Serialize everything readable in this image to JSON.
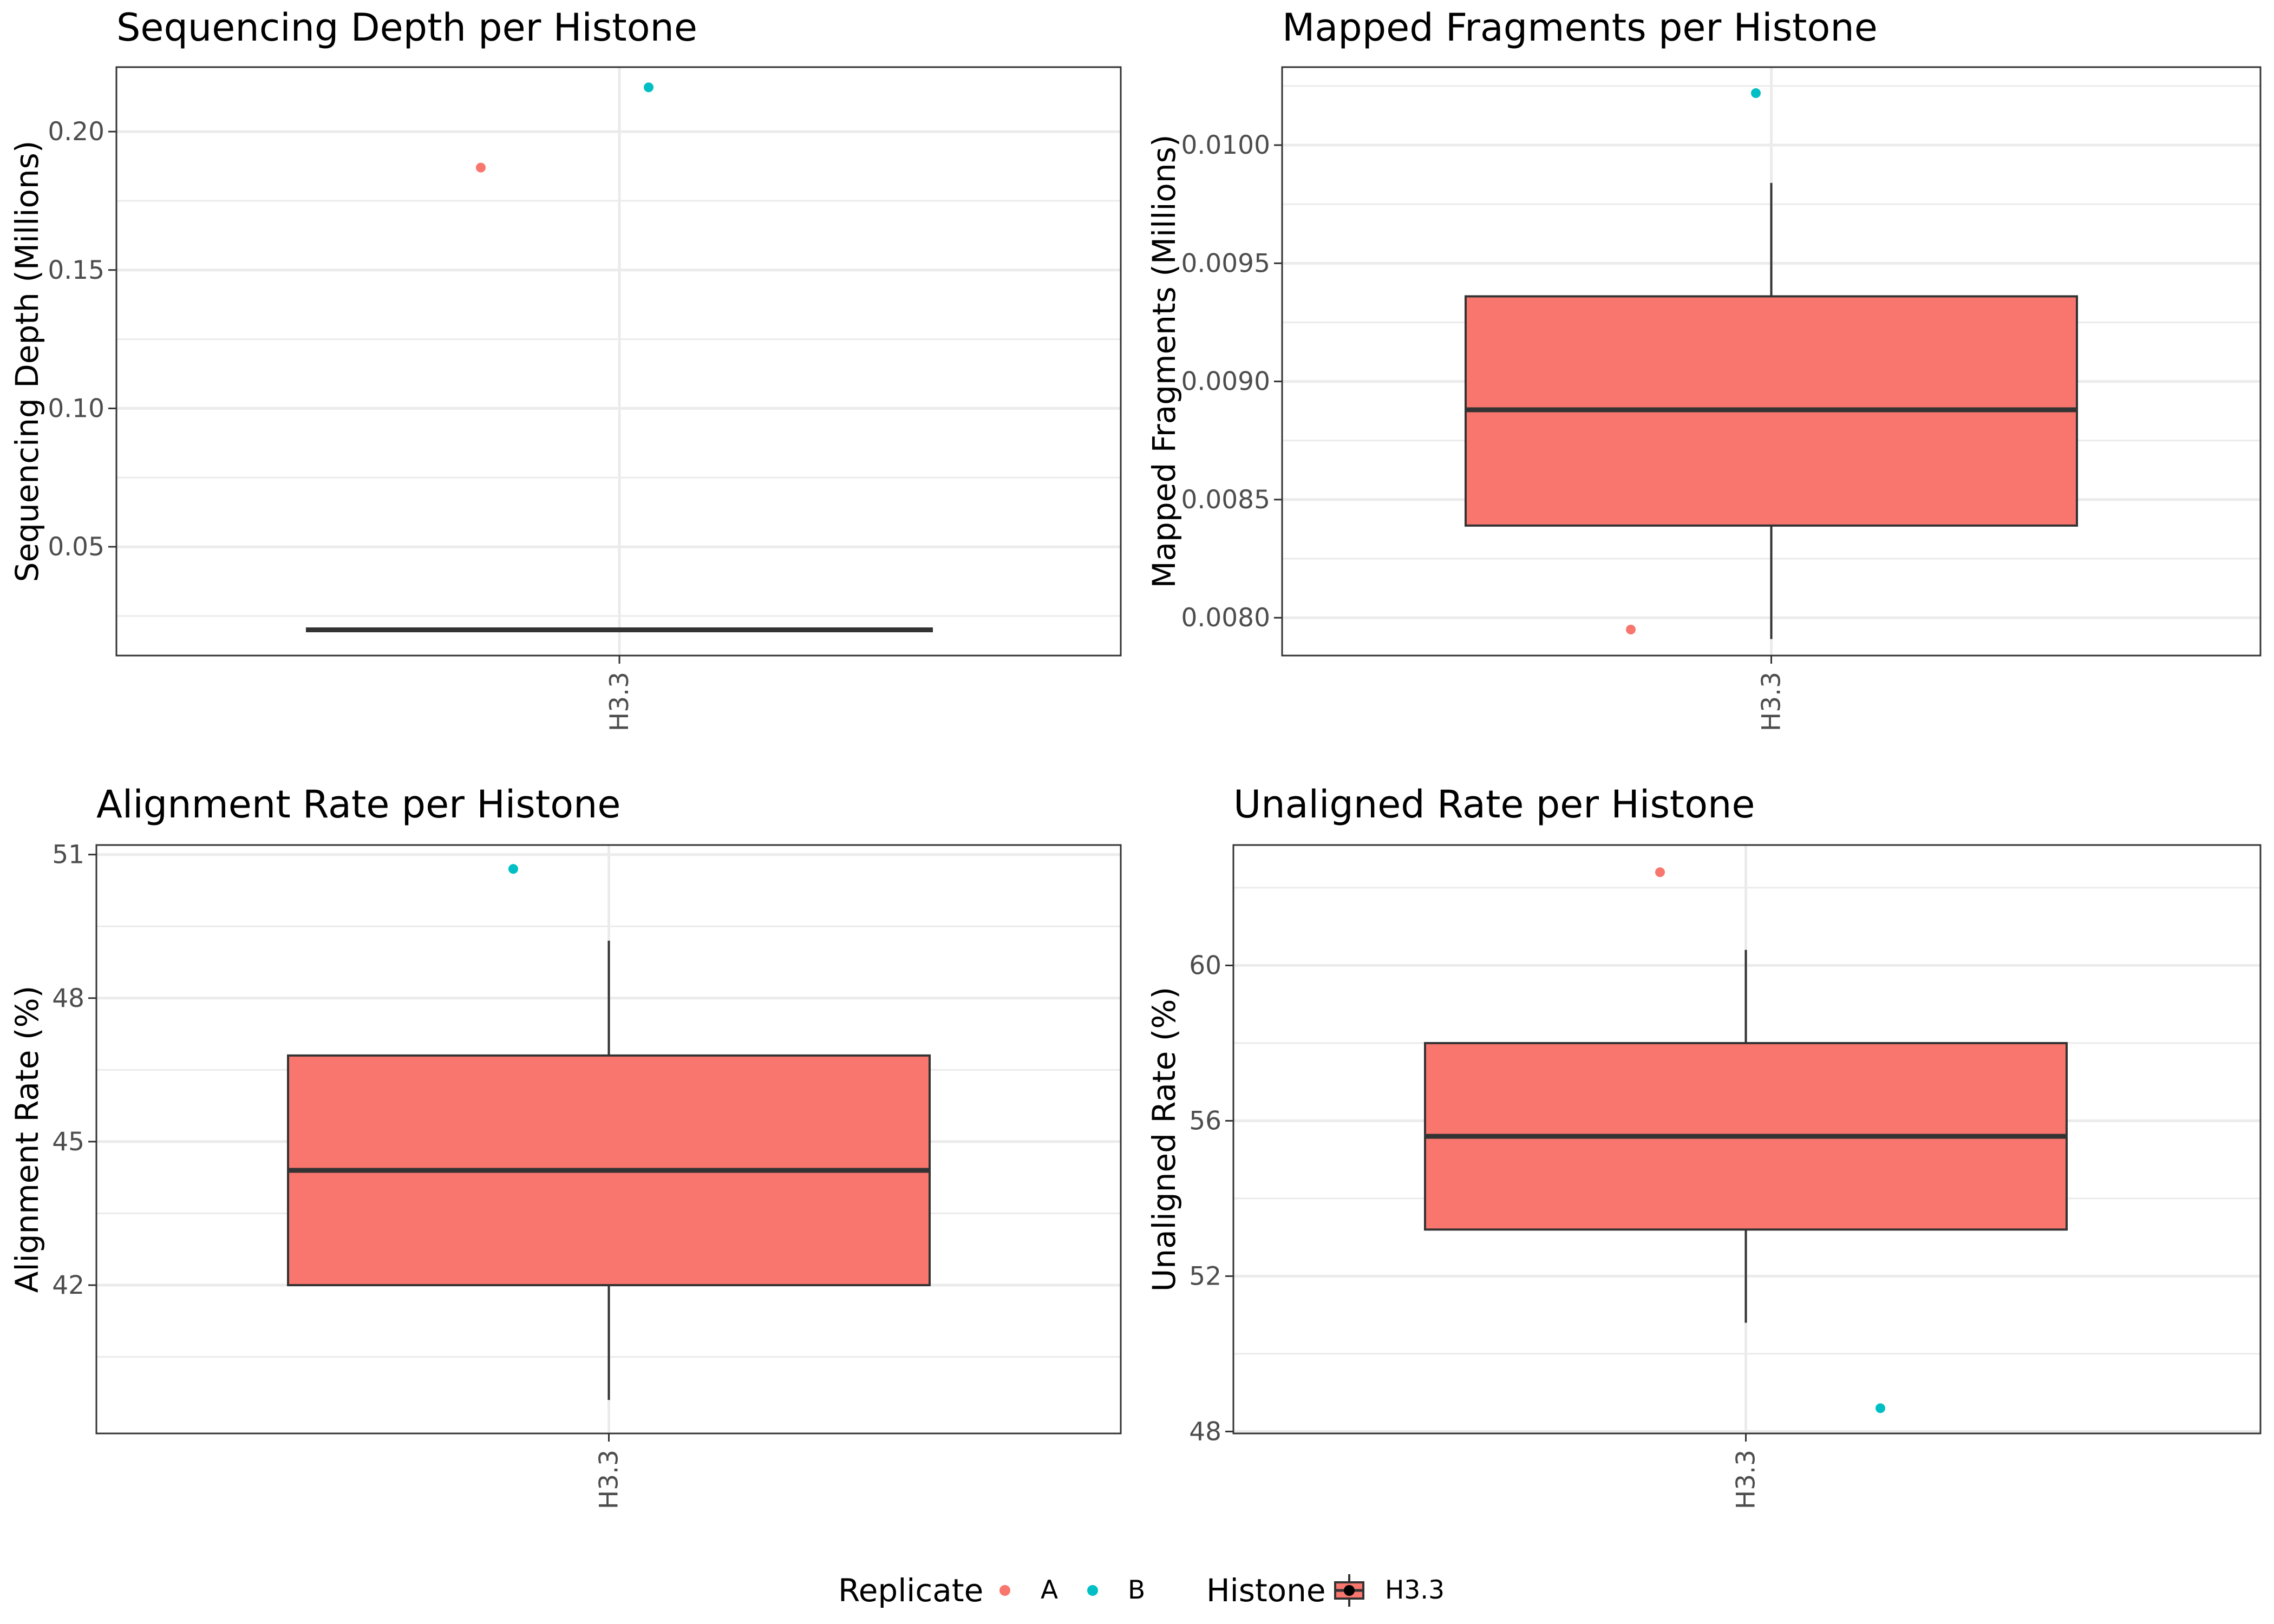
{
  "colors": {
    "A": "#F8766D",
    "B": "#00BFC4",
    "box_fill": "#F8766D",
    "median": "#333333",
    "grid": "#EBEBEB",
    "border": "#333333"
  },
  "chart_data": [
    {
      "type": "box",
      "title": "Sequencing Depth per Histone",
      "xlabel": "",
      "ylabel": "Sequencing Depth (Millions)",
      "categories": [
        "H3.3"
      ],
      "ylim": [
        0.0107,
        0.2233
      ],
      "yticks": [
        0.05,
        0.1,
        0.15,
        0.2
      ],
      "ytick_labels": [
        "0.05",
        "0.10",
        "0.15",
        "0.20"
      ],
      "box": {
        "q1": 0.02,
        "median": 0.02,
        "q3": 0.02,
        "whisker_low": 0.02,
        "whisker_high": 0.02
      },
      "points": [
        {
          "replicate": "A",
          "value": 0.187
        },
        {
          "replicate": "B",
          "value": 0.216
        }
      ],
      "grid": true
    },
    {
      "type": "box",
      "title": "Mapped Fragments per Histone",
      "xlabel": "",
      "ylabel": "Mapped Fragments (Millions)",
      "categories": [
        "H3.3"
      ],
      "ylim": [
        0.00784,
        0.01033
      ],
      "yticks": [
        0.008,
        0.0085,
        0.009,
        0.0095,
        0.01
      ],
      "ytick_labels": [
        "0.0080",
        "0.0085",
        "0.0090",
        "0.0095",
        "0.0100"
      ],
      "box": {
        "q1": 0.00839,
        "median": 0.00888,
        "q3": 0.00936,
        "whisker_low": 0.00791,
        "whisker_high": 0.00984
      },
      "points": [
        {
          "replicate": "A",
          "value": 0.00795
        },
        {
          "replicate": "B",
          "value": 0.01022
        }
      ],
      "grid": true
    },
    {
      "type": "box",
      "title": "Alignment Rate per Histone",
      "xlabel": "",
      "ylabel": "Alignment Rate (%)",
      "categories": [
        "H3.3"
      ],
      "ylim": [
        38.9,
        51.2
      ],
      "yticks": [
        42,
        45,
        48,
        51
      ],
      "ytick_labels": [
        "42",
        "45",
        "48",
        "51"
      ],
      "box": {
        "q1": 42.0,
        "median": 44.4,
        "q3": 46.8,
        "whisker_low": 39.6,
        "whisker_high": 49.2
      },
      "points": [
        {
          "replicate": "B",
          "value": 50.7
        }
      ],
      "grid": true
    },
    {
      "type": "box",
      "title": "Unaligned Rate per Histone",
      "xlabel": "",
      "ylabel": "Unaligned Rate (%)",
      "categories": [
        "H3.3"
      ],
      "ylim": [
        47.95,
        63.1
      ],
      "yticks": [
        48,
        52,
        56,
        60
      ],
      "ytick_labels": [
        "48",
        "52",
        "56",
        "60"
      ],
      "box": {
        "q1": 53.2,
        "median": 55.6,
        "q3": 58.0,
        "whisker_low": 50.8,
        "whisker_high": 60.4
      },
      "points": [
        {
          "replicate": "A",
          "value": 62.4
        },
        {
          "replicate": "B",
          "value": 48.6
        }
      ],
      "grid": true
    }
  ],
  "legend": {
    "replicate_title": "Replicate",
    "replicate_items": [
      {
        "label": "A",
        "color": "#F8766D"
      },
      {
        "label": "B",
        "color": "#00BFC4"
      }
    ],
    "histone_title": "Histone",
    "histone_items": [
      {
        "label": "H3.3",
        "color": "#F8766D"
      }
    ],
    "placement": "bottom"
  }
}
